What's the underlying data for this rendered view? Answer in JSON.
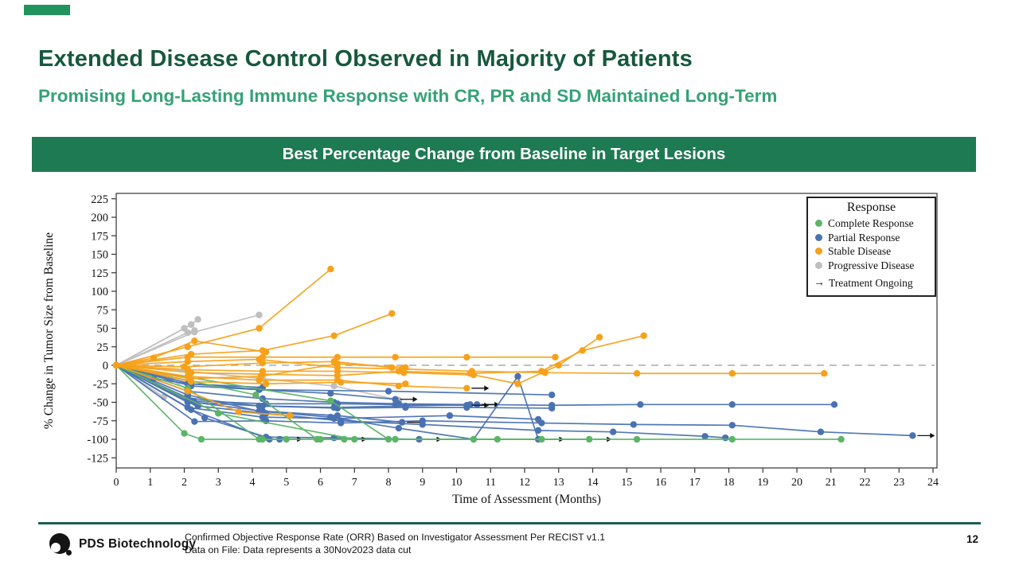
{
  "slide": {
    "title": "Extended Disease Control Observed in Majority of Patients",
    "subtitle": "Promising Long-Lasting Immune Response with CR, PR and SD Maintained Long-Term",
    "banner": "Best Percentage Change from Baseline in Target Lesions",
    "logo_text": "PDS Biotechnology",
    "footer_line1": "Confirmed Objective Response  Rate (ORR) Based  on Investigator  Assessment Per RECIST v1.1",
    "footer_line2": "Data on File: Data represents  a 30Nov2023 data cut",
    "page_number": "12",
    "accent_colors": {
      "title_green": "#17583f",
      "subtitle_green": "#35a276",
      "banner_green": "#1e7a52",
      "footer_line_green": "#1e5f4e",
      "corner_mark_green": "#21945d"
    }
  },
  "chart_data": {
    "type": "line",
    "subtype": "spider-plot",
    "title": "Best Percentage Change from Baseline in Target Lesions",
    "xlabel": "Time of Assessment (Months)",
    "ylabel": "% Change in Tumor Size from Baseline",
    "xlim": [
      0,
      24
    ],
    "ylim": [
      -125,
      225
    ],
    "xticks": [
      0,
      1,
      2,
      3,
      4,
      5,
      6,
      7,
      8,
      9,
      10,
      11,
      12,
      13,
      14,
      15,
      16,
      17,
      18,
      19,
      20,
      21,
      22,
      23,
      24
    ],
    "yticks": [
      225,
      200,
      175,
      150,
      125,
      100,
      75,
      50,
      25,
      0,
      -25,
      -50,
      -75,
      -100,
      -125
    ],
    "grid": false,
    "zero_reference_line": {
      "y": 0,
      "style": "dashed",
      "color": "#aaaaaa"
    },
    "colors": {
      "CR": "#5cb567",
      "PR": "#4a72b2",
      "SD": "#f7a11a",
      "PD": "#bfbfbf"
    },
    "legend": {
      "position": "top-right",
      "title": "Response",
      "items": [
        {
          "key": "CR",
          "label": "Complete Response",
          "color": "#5cb567"
        },
        {
          "key": "PR",
          "label": "Partial Response",
          "color": "#4a72b2"
        },
        {
          "key": "SD",
          "label": "Stable Disease",
          "color": "#f7a11a"
        },
        {
          "key": "PD",
          "label": "Progressive Disease",
          "color": "#bfbfbf"
        }
      ],
      "ongoing_symbol": "→",
      "ongoing_label": "Treatment Ongoing"
    },
    "series": [
      {
        "response": "PD",
        "ongoing": false,
        "points": [
          [
            0,
            0
          ],
          [
            2.0,
            50
          ]
        ]
      },
      {
        "response": "PD",
        "ongoing": false,
        "points": [
          [
            0,
            0
          ],
          [
            2.2,
            55
          ],
          [
            2.4,
            62
          ]
        ]
      },
      {
        "response": "PD",
        "ongoing": false,
        "points": [
          [
            0,
            0
          ],
          [
            2.1,
            44
          ],
          [
            2.3,
            47
          ]
        ]
      },
      {
        "response": "PD",
        "ongoing": false,
        "points": [
          [
            0,
            0
          ],
          [
            2.3,
            45
          ],
          [
            4.2,
            68
          ]
        ]
      },
      {
        "response": "PD",
        "ongoing": false,
        "points": [
          [
            0,
            0
          ],
          [
            1.6,
            -19
          ],
          [
            2.1,
            -33
          ]
        ]
      },
      {
        "response": "PD",
        "ongoing": false,
        "points": [
          [
            0,
            0
          ],
          [
            1.4,
            -43
          ]
        ]
      },
      {
        "response": "PD",
        "ongoing": false,
        "points": [
          [
            0,
            0
          ],
          [
            2.1,
            -8
          ],
          [
            4.3,
            -18
          ],
          [
            6.4,
            -28
          ],
          [
            8.3,
            -47
          ]
        ]
      },
      {
        "response": "PR",
        "ongoing": false,
        "points": [
          [
            0,
            0
          ],
          [
            2.1,
            -35
          ],
          [
            4.3,
            -45
          ],
          [
            6.4,
            -50
          ],
          [
            8.3,
            -52
          ],
          [
            10.4,
            -53
          ],
          [
            12.8,
            -54
          ],
          [
            15.4,
            -53
          ],
          [
            18.1,
            -53
          ],
          [
            21.1,
            -53
          ]
        ]
      },
      {
        "response": "PR",
        "ongoing": true,
        "points": [
          [
            0,
            0
          ],
          [
            2.1,
            -44
          ],
          [
            4.2,
            -55
          ],
          [
            6.4,
            -57
          ],
          [
            8.5,
            -55
          ],
          [
            10.6,
            -53
          ]
        ]
      },
      {
        "response": "PR",
        "ongoing": true,
        "points": [
          [
            0,
            0
          ],
          [
            2.3,
            -50
          ],
          [
            4.3,
            -62
          ],
          [
            6.5,
            -68
          ],
          [
            8.4,
            -77
          ]
        ]
      },
      {
        "response": "PR",
        "ongoing": true,
        "points": [
          [
            0,
            0
          ],
          [
            2.2,
            -25
          ],
          [
            4.2,
            -33
          ],
          [
            6.3,
            -38
          ],
          [
            8.2,
            -46
          ]
        ]
      },
      {
        "response": "PR",
        "ongoing": false,
        "points": [
          [
            0,
            0
          ],
          [
            2.1,
            -57
          ],
          [
            4.3,
            -70
          ],
          [
            6.4,
            -72
          ],
          [
            9.8,
            -68
          ],
          [
            12.4,
            -73
          ]
        ]
      },
      {
        "response": "PR",
        "ongoing": true,
        "points": [
          [
            0,
            0
          ],
          [
            2.3,
            -76
          ],
          [
            4.4,
            -75
          ],
          [
            6.6,
            -78
          ],
          [
            9.0,
            -75
          ],
          [
            12.5,
            -78
          ],
          [
            15.2,
            -80
          ],
          [
            18.1,
            -81
          ],
          [
            20.7,
            -90
          ],
          [
            23.4,
            -95
          ]
        ]
      },
      {
        "response": "PR",
        "ongoing": true,
        "points": [
          [
            0,
            0
          ],
          [
            2.6,
            -71
          ],
          [
            4.4,
            -97
          ],
          [
            6.4,
            -98
          ],
          [
            8.9,
            -100
          ]
        ]
      },
      {
        "response": "PR",
        "ongoing": true,
        "points": [
          [
            0,
            0
          ],
          [
            2.2,
            -60
          ],
          [
            4.5,
            -100
          ],
          [
            4.8,
            -100
          ]
        ]
      },
      {
        "response": "PR",
        "ongoing": false,
        "points": [
          [
            0,
            0
          ],
          [
            2.1,
            -40
          ],
          [
            4.2,
            -62
          ],
          [
            6.3,
            -70
          ],
          [
            8.3,
            -85
          ],
          [
            10.5,
            -100
          ],
          [
            11.8,
            -15
          ],
          [
            12.4,
            -100
          ]
        ]
      },
      {
        "response": "PR",
        "ongoing": false,
        "points": [
          [
            0,
            0
          ],
          [
            2.2,
            -28
          ],
          [
            4.2,
            -33
          ],
          [
            8.0,
            -35
          ],
          [
            12.8,
            -40
          ]
        ]
      },
      {
        "response": "PR",
        "ongoing": false,
        "points": [
          [
            0,
            0
          ],
          [
            2.1,
            -50
          ],
          [
            4.3,
            -55
          ],
          [
            6.5,
            -58
          ],
          [
            8.5,
            -57
          ],
          [
            10.3,
            -57
          ],
          [
            12.8,
            -58
          ]
        ]
      },
      {
        "response": "PR",
        "ongoing": false,
        "points": [
          [
            0,
            0
          ],
          [
            2.4,
            -55
          ],
          [
            4.4,
            -65
          ],
          [
            6.6,
            -75
          ],
          [
            9.0,
            -80
          ],
          [
            12.4,
            -88
          ],
          [
            14.6,
            -90
          ],
          [
            17.3,
            -96
          ],
          [
            17.9,
            -98
          ]
        ]
      },
      {
        "response": "PR",
        "ongoing": false,
        "points": [
          [
            0,
            0
          ],
          [
            1.1,
            -18
          ],
          [
            2.1,
            -25
          ],
          [
            4.3,
            -30
          ]
        ]
      },
      {
        "response": "PR",
        "ongoing": true,
        "points": [
          [
            0,
            0
          ],
          [
            2.2,
            -48
          ],
          [
            4.4,
            -52
          ],
          [
            6.5,
            -52
          ],
          [
            8.2,
            -53
          ],
          [
            10.3,
            -54
          ]
        ]
      },
      {
        "response": "CR",
        "ongoing": false,
        "points": [
          [
            0,
            0
          ],
          [
            2.0,
            -92
          ],
          [
            2.5,
            -100
          ],
          [
            4.3,
            -100
          ],
          [
            5.0,
            -100
          ]
        ]
      },
      {
        "response": "CR",
        "ongoing": true,
        "points": [
          [
            0,
            0
          ],
          [
            2.1,
            -31
          ],
          [
            4.2,
            -100
          ],
          [
            6.0,
            -100
          ],
          [
            6.7,
            -100
          ]
        ]
      },
      {
        "response": "CR",
        "ongoing": true,
        "points": [
          [
            0,
            0
          ],
          [
            4.1,
            -40
          ],
          [
            5.9,
            -100
          ],
          [
            8.2,
            -100
          ],
          [
            10.5,
            -100
          ],
          [
            12.5,
            -100
          ]
        ]
      },
      {
        "response": "CR",
        "ongoing": true,
        "points": [
          [
            0,
            0
          ],
          [
            6.3,
            -48
          ],
          [
            8.0,
            -100
          ],
          [
            11.2,
            -100
          ],
          [
            13.9,
            -100
          ]
        ]
      },
      {
        "response": "CR",
        "ongoing": false,
        "points": [
          [
            0,
            0
          ],
          [
            3.0,
            -65
          ],
          [
            7.0,
            -100
          ],
          [
            15.3,
            -100
          ],
          [
            18.1,
            -100
          ],
          [
            21.3,
            -100
          ]
        ]
      },
      {
        "response": "SD",
        "ongoing": false,
        "points": [
          [
            0,
            0
          ],
          [
            2.1,
            25
          ],
          [
            4.2,
            50
          ],
          [
            6.3,
            130
          ]
        ]
      },
      {
        "response": "SD",
        "ongoing": false,
        "points": [
          [
            0,
            0
          ],
          [
            2.2,
            15
          ],
          [
            4.3,
            20
          ],
          [
            6.4,
            40
          ],
          [
            8.1,
            70
          ]
        ]
      },
      {
        "response": "SD",
        "ongoing": false,
        "points": [
          [
            0,
            0
          ],
          [
            2.1,
            11
          ],
          [
            4.3,
            11
          ],
          [
            6.5,
            11
          ],
          [
            8.2,
            11
          ],
          [
            10.3,
            11
          ],
          [
            12.9,
            11
          ]
        ]
      },
      {
        "response": "SD",
        "ongoing": false,
        "points": [
          [
            0,
            0
          ],
          [
            2.1,
            5
          ],
          [
            4.2,
            8
          ],
          [
            6.5,
            -3
          ],
          [
            8.4,
            -5
          ],
          [
            10.45,
            -8
          ],
          [
            12.6,
            -10
          ],
          [
            15.3,
            -11
          ],
          [
            18.1,
            -11
          ],
          [
            20.8,
            -11
          ]
        ]
      },
      {
        "response": "SD",
        "ongoing": false,
        "points": [
          [
            0,
            0
          ],
          [
            2.1,
            -6
          ],
          [
            4.3,
            -8
          ],
          [
            6.5,
            -8
          ],
          [
            8.45,
            -10
          ],
          [
            10.5,
            -13
          ],
          [
            11.8,
            -25
          ],
          [
            13.0,
            0
          ],
          [
            14.2,
            38
          ]
        ]
      },
      {
        "response": "SD",
        "ongoing": false,
        "points": [
          [
            0,
            0
          ],
          [
            2.2,
            -10
          ],
          [
            4.3,
            -12
          ],
          [
            6.5,
            -14
          ],
          [
            8.3,
            -8
          ],
          [
            10.4,
            -11
          ],
          [
            12.5,
            -8
          ],
          [
            13.7,
            20
          ],
          [
            15.5,
            40
          ]
        ]
      },
      {
        "response": "SD",
        "ongoing": true,
        "points": [
          [
            0,
            0
          ],
          [
            2.1,
            -15
          ],
          [
            4.2,
            -20
          ],
          [
            6.5,
            -20
          ],
          [
            8.3,
            -28
          ],
          [
            10.3,
            -31
          ]
        ]
      },
      {
        "response": "SD",
        "ongoing": false,
        "points": [
          [
            0,
            0
          ],
          [
            2.0,
            -2
          ],
          [
            4.3,
            3
          ],
          [
            6.4,
            5
          ],
          [
            8.1,
            -3
          ]
        ]
      },
      {
        "response": "SD",
        "ongoing": false,
        "points": [
          [
            0,
            0
          ],
          [
            2.1,
            -35
          ],
          [
            3.6,
            -63
          ],
          [
            5.1,
            -68
          ]
        ]
      },
      {
        "response": "SD",
        "ongoing": false,
        "points": [
          [
            0,
            0
          ],
          [
            2.2,
            -22
          ],
          [
            4.4,
            -25
          ],
          [
            6.6,
            -23
          ],
          [
            8.5,
            -25
          ]
        ]
      },
      {
        "response": "SD",
        "ongoing": false,
        "points": [
          [
            0,
            0
          ],
          [
            1.1,
            10
          ],
          [
            2.3,
            33
          ],
          [
            4.4,
            18
          ]
        ]
      },
      {
        "response": "SD",
        "ongoing": false,
        "points": [
          [
            0,
            0
          ],
          [
            2.15,
            -18
          ],
          [
            4.25,
            -15
          ],
          [
            6.5,
            2
          ],
          [
            8.5,
            -3
          ]
        ]
      }
    ]
  }
}
